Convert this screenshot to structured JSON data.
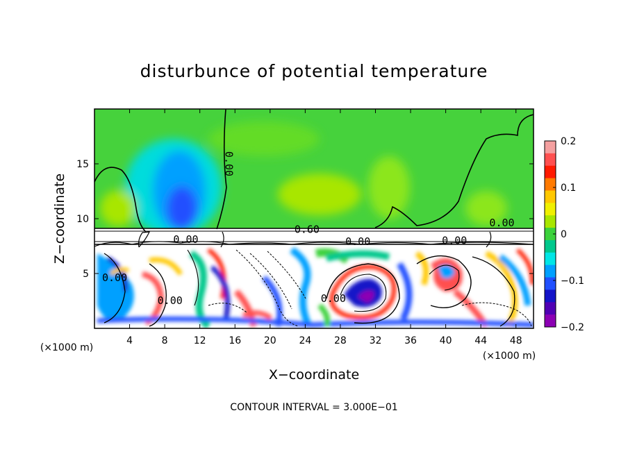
{
  "chart_data": {
    "type": "heatmap",
    "title": "disturbunce of potential temperature",
    "xlabel": "X−coordinate",
    "ylabel": "Z−coordinate",
    "x_unit_label_left": "(×1000 m)",
    "x_unit_label_right": "(×1000 m)",
    "xlim": [
      0,
      50
    ],
    "ylim": [
      0,
      20
    ],
    "x_ticks": [
      4,
      8,
      12,
      16,
      20,
      24,
      28,
      32,
      36,
      40,
      44,
      48
    ],
    "x_tick_labels": [
      "4",
      "8",
      "12",
      "16",
      "20",
      "24",
      "28",
      "32",
      "36",
      "40",
      "44",
      "48"
    ],
    "y_ticks": [
      5,
      10,
      15
    ],
    "y_tick_labels": [
      "5",
      "10",
      "15"
    ],
    "footnote": "CONTOUR INTERVAL = 3.000E−01",
    "colorbar": {
      "range": [
        -0.2,
        0.2
      ],
      "tick_values": [
        0.2,
        0.1,
        0,
        -0.1,
        -0.2
      ],
      "tick_labels": [
        "0.2",
        "0.1",
        "0",
        "−0.1",
        "−0.2"
      ],
      "colors": [
        "#f4a0a0",
        "#ff5050",
        "#ff1a00",
        "#ff7a00",
        "#ffc800",
        "#f0f000",
        "#a8e600",
        "#3cd23c",
        "#00c88c",
        "#00e6e6",
        "#00a0ff",
        "#2050ff",
        "#1414c8",
        "#5000b4",
        "#8c00b4"
      ]
    },
    "contour_labels": [
      {
        "text": "0.00",
        "x": 14.9,
        "z": 15.0
      },
      {
        "text": "0.60",
        "x": 24.2,
        "z": 8.7
      },
      {
        "text": "0.00",
        "x": 46.4,
        "z": 9.3
      },
      {
        "text": "0.00",
        "x": 30.0,
        "z": 7.6
      },
      {
        "text": "0.00",
        "x": 41.0,
        "z": 7.7
      },
      {
        "text": "0.00",
        "x": 10.4,
        "z": 7.8
      },
      {
        "text": "0.00",
        "x": 2.3,
        "z": 4.3
      },
      {
        "text": "0.00",
        "x": 8.6,
        "z": 2.2
      },
      {
        "text": "0.00",
        "x": 27.2,
        "z": 2.4
      }
    ]
  }
}
